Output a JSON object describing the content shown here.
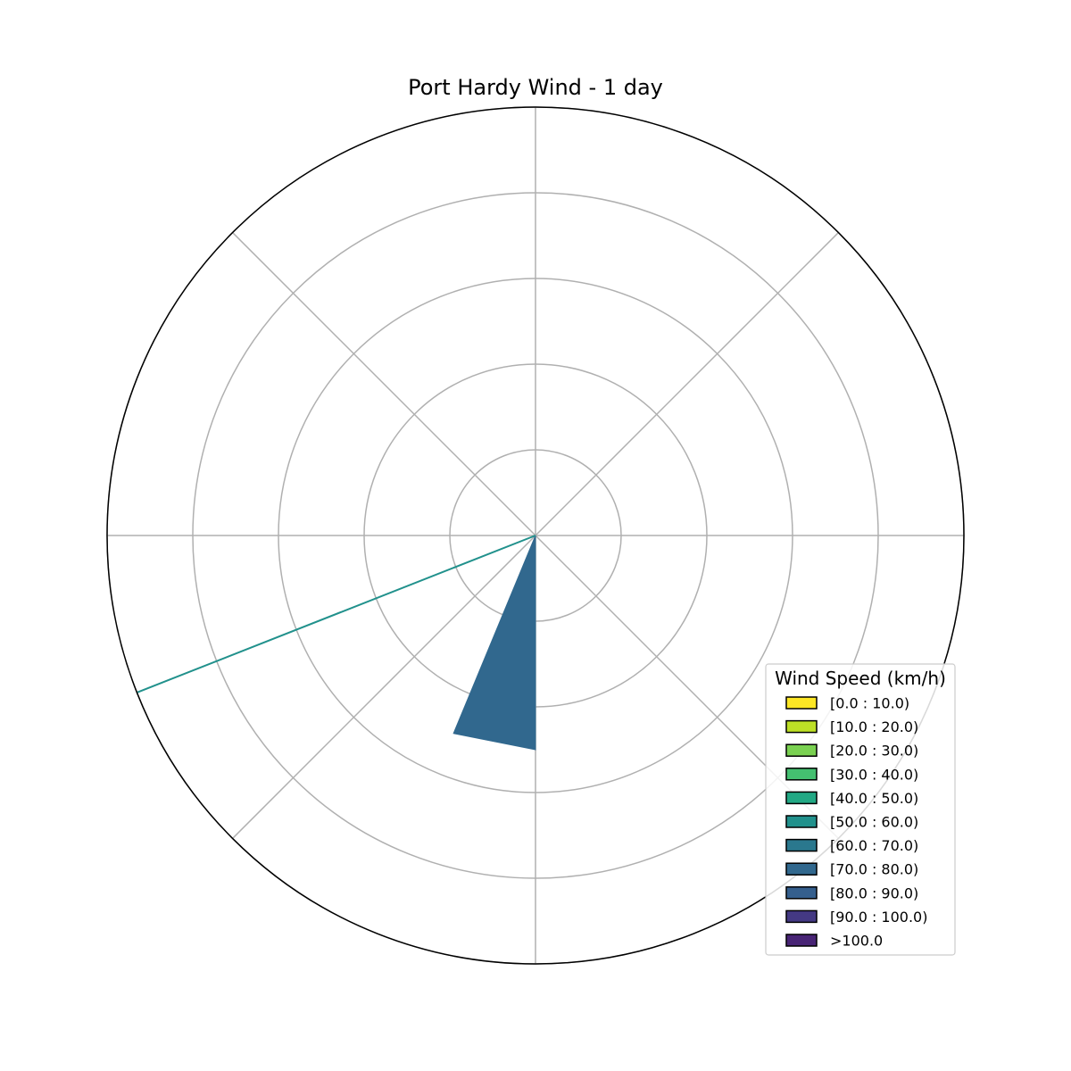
{
  "chart_data": {
    "type": "windrose",
    "title": "Port Hardy Wind - 1 day",
    "legend_title": "Wind Speed (km/h)",
    "legend_position": "lower-right",
    "grid": true,
    "radial_max": 5,
    "radial_ticks": [
      1,
      2,
      3,
      4,
      5
    ],
    "angular_gridlines_deg": [
      0,
      45,
      90,
      135,
      180,
      225,
      270,
      315
    ],
    "bins": [
      {
        "label": "[0.0 : 10.0)",
        "color": "#fde725"
      },
      {
        "label": "[10.0 : 20.0)",
        "color": "#bddf26"
      },
      {
        "label": "[20.0 : 30.0)",
        "color": "#7ad151"
      },
      {
        "label": "[30.0 : 40.0)",
        "color": "#44bf70"
      },
      {
        "label": "[40.0 : 50.0)",
        "color": "#22a884"
      },
      {
        "label": "[50.0 : 60.0)",
        "color": "#21918c"
      },
      {
        "label": "[60.0 : 70.0)",
        "color": "#2a788e"
      },
      {
        "label": "[70.0 : 80.0)",
        "color": "#31688e"
      },
      {
        "label": "[80.0 : 90.0)",
        "color": "#355f8d"
      },
      {
        "label": "[90.0 : 100.0)",
        "color": "#443983"
      },
      {
        ">label": null,
        "label": ">100.0",
        "color": "#482475"
      }
    ],
    "sectors": [
      {
        "direction_start_deg": 180,
        "direction_end_deg": 202.5,
        "bin": "[70.0 : 80.0)",
        "value": 2.5
      },
      {
        "direction_start_deg": 248.5,
        "direction_end_deg": 248.5,
        "bin": "[50.0 : 60.0)",
        "value": 5
      }
    ]
  }
}
